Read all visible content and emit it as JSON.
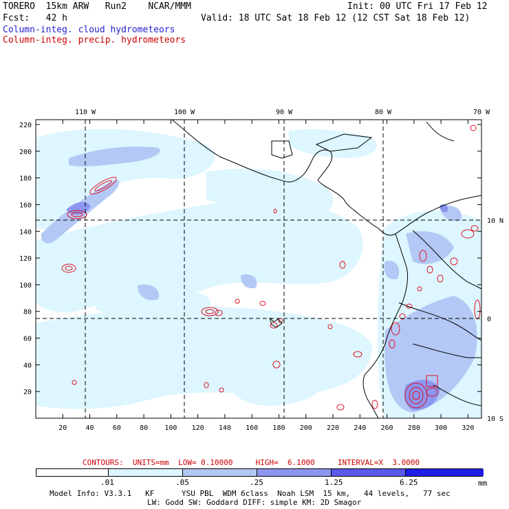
{
  "header": {
    "model_line": "TORERO  15km ARW   Run2    NCAR/MMM",
    "init": "Init: 00 UTC Fri 17 Feb 12",
    "fcst": "Fcst:   42 h",
    "valid": "Valid: 18 UTC Sat 18 Feb 12 (12 CST Sat 18 Feb 12)",
    "legend_cloud": "Column-integ. cloud hydrometeors",
    "legend_precip": "Column-integ. precip. hydrometeors"
  },
  "map": {
    "lon_labels": [
      "110 W",
      "100 W",
      "90 W",
      "80 W",
      "70 W"
    ],
    "lat_labels": [
      "10 N",
      "0",
      "10 S"
    ],
    "y_ticks": [
      "220",
      "200",
      "180",
      "160",
      "140",
      "120",
      "100",
      "80",
      "60",
      "40",
      "20"
    ],
    "x_ticks": [
      "20",
      "40",
      "60",
      "80",
      "100",
      "120",
      "140",
      "160",
      "180",
      "200",
      "220",
      "240",
      "260",
      "280",
      "300",
      "320"
    ]
  },
  "contours": {
    "label": "CONTOURS:  UNITS=mm  LOW= 0.10000     HIGH=  6.1000     INTERVAL=X  3.0000"
  },
  "colorbar": {
    "labels": [
      ".01",
      ".05",
      ".25",
      "1.25",
      "6.25"
    ],
    "unit": "mm",
    "colors": [
      "#ffffff",
      "#ddf6ff",
      "#b4c8f5",
      "#8c96f0",
      "#5a5aec",
      "#1e1ee6"
    ]
  },
  "footer": {
    "line1": "Model Info: V3.3.1   KF      YSU PBL  WDM 6class  Noah LSM  15 km,   44 levels,   77 sec",
    "line2": "LW: Godd SW: Goddard DIFF: simple KM: 2D Smagor"
  }
}
